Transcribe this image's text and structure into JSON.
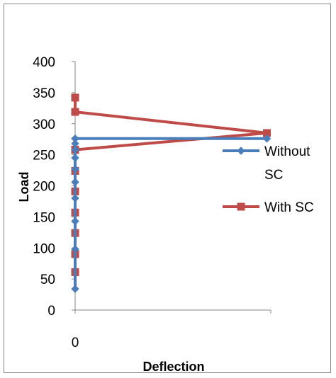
{
  "chart_data": {
    "type": "scatter",
    "title": "",
    "xlabel": "Deflection",
    "ylabel": "Load",
    "xlim": [
      0,
      1
    ],
    "ylim": [
      0,
      400
    ],
    "x_tick_labels": [
      "0"
    ],
    "y_ticks": [
      0,
      50,
      100,
      150,
      200,
      250,
      300,
      350,
      400
    ],
    "grid": false,
    "legend_position": "right",
    "series": [
      {
        "name": "Without SC",
        "legend_lines": [
          "Without",
          "SC"
        ],
        "color": "#4a7ebb",
        "marker": "diamond",
        "x": [
          0,
          0,
          0,
          0,
          0,
          0,
          0,
          0,
          0,
          0,
          0,
          0.98
        ],
        "y": [
          34,
          98,
          143,
          180,
          206,
          227,
          245,
          258,
          268,
          276,
          276,
          276
        ]
      },
      {
        "name": "With SC",
        "legend_lines": [
          "With SC"
        ],
        "color": "#be4b48",
        "marker": "square",
        "x": [
          0,
          0,
          0,
          0,
          0,
          0,
          0,
          0,
          0,
          0.98,
          0,
          0
        ],
        "y": [
          61,
          90,
          124,
          157,
          191,
          224,
          258,
          258,
          258,
          285,
          319,
          342
        ]
      }
    ]
  }
}
